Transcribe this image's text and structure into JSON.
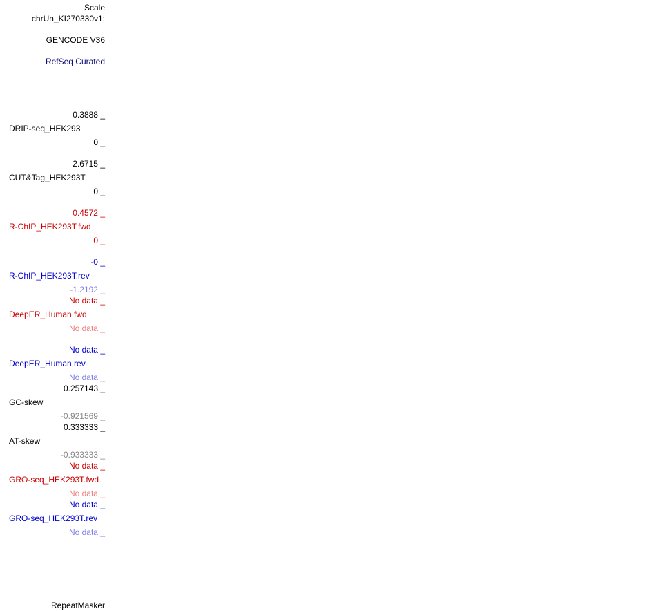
{
  "header": {
    "scale_label": "Scale",
    "chrom_label": "chrUn_KI270330v1:"
  },
  "tracks": {
    "gencode": "GENCODE V36",
    "refseq": "RefSeq Curated",
    "drip": {
      "max": "0.3888 _",
      "name": "DRIP-seq_HEK293",
      "min": "0 _"
    },
    "cuttag": {
      "max": "2.6715 _",
      "name": "CUT&Tag_HEK293T",
      "min": "0 _"
    },
    "rchip_fwd": {
      "max": "0.4572 _",
      "name": "R-ChIP_HEK293T.fwd",
      "min": "0 _"
    },
    "rchip_rev": {
      "max": "-0 _",
      "name": "R-ChIP_HEK293T.rev",
      "min": "-1.2192 _"
    },
    "deeper_fwd": {
      "max": "No data _",
      "name": "DeepER_Human.fwd",
      "min": "No data _"
    },
    "deeper_rev": {
      "max": "No data _",
      "name": "DeepER_Human.rev",
      "min": "No data _"
    },
    "gcskew": {
      "max": "0.257143 _",
      "name": "GC-skew",
      "min": "-0.921569 _"
    },
    "atskew": {
      "max": "0.333333 _",
      "name": "AT-skew",
      "min": "-0.933333 _"
    },
    "gro_fwd": {
      "max": "No data _",
      "name": "GRO-seq_HEK293T.fwd",
      "min": "No data _"
    },
    "gro_rev": {
      "max": "No data _",
      "name": "GRO-seq_HEK293T.rev",
      "min": "No data _"
    },
    "repeatmasker": "RepeatMasker"
  },
  "colors": {
    "navy": "#0c0c78",
    "red": "#cc0000",
    "pink": "#ee7f7f",
    "blue": "#0000cc",
    "lightblue": "#7f7fe6",
    "gray": "#888888"
  }
}
